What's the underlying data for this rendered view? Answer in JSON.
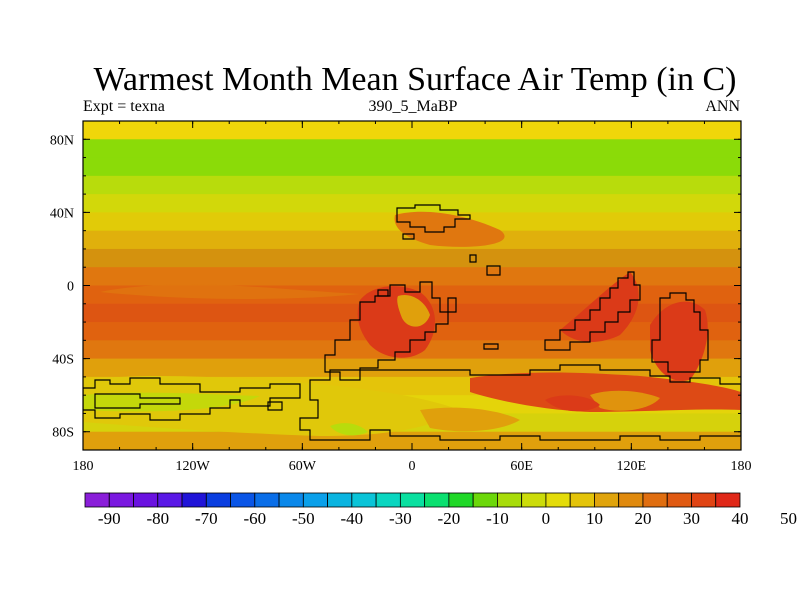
{
  "title": "Warmest Month Mean Surface Air Temp (in C)",
  "left_string": "Expt = texna",
  "center_string": "390_5_MaBP",
  "right_string": "ANN",
  "map": {
    "lon_ticks": [
      "180",
      "120W",
      "60W",
      "0",
      "60E",
      "120E",
      "180"
    ],
    "lat_ticks": [
      "80N",
      "40N",
      "0",
      "40S",
      "80S"
    ],
    "band_colors": [
      "#f0d60a",
      "#8bdb08",
      "#8bdb08",
      "#b8dc0c",
      "#d2d80a",
      "#e1cb08",
      "#e0b00c",
      "#d4920e",
      "#e0770f",
      "#e0620f",
      "#dd5512",
      "#e0620f",
      "#e0770f",
      "#e0a00c",
      "#e4c40a",
      "#e4d40a",
      "#d6d20c",
      "#e0a00c"
    ],
    "region_colors": {
      "hot": "#dd4a15",
      "very_hot": "#db3a18",
      "warm": "#e0a00c",
      "mild": "#e0c80a",
      "cool": "#c4d80a"
    }
  },
  "colorbar": {
    "colors": [
      "#8a1ed9",
      "#7a18e0",
      "#6a12e0",
      "#5a18e6",
      "#2014d8",
      "#0a3ee0",
      "#0a55e6",
      "#0a6ee8",
      "#0a88ea",
      "#0aa0ea",
      "#0ab4e0",
      "#0ac4d8",
      "#0ad6c0",
      "#0ae0a0",
      "#0ae070",
      "#20d828",
      "#6cd80a",
      "#a8dc0a",
      "#ccdc0a",
      "#e4dc0a",
      "#e4c40a",
      "#e0a40c",
      "#e08a0e",
      "#e06e10",
      "#e05a12",
      "#e04414",
      "#e02818"
    ],
    "labels": [
      "-90",
      "-80",
      "-70",
      "-60",
      "-50",
      "-40",
      "-30",
      "-20",
      "-10",
      "0",
      "10",
      "20",
      "30",
      "40",
      "50"
    ]
  }
}
